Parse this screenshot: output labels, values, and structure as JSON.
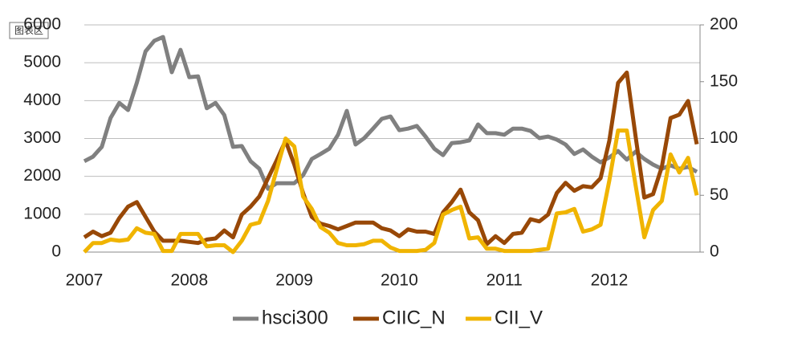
{
  "chart_data": {
    "type": "line",
    "tooltip": "图表区",
    "categories": [
      "2007",
      null,
      null,
      null,
      null,
      null,
      null,
      null,
      null,
      null,
      null,
      null,
      "2008",
      null,
      null,
      null,
      null,
      null,
      null,
      null,
      null,
      null,
      null,
      null,
      "2009",
      null,
      null,
      null,
      null,
      null,
      null,
      null,
      null,
      null,
      null,
      null,
      "2010",
      null,
      null,
      null,
      null,
      null,
      null,
      null,
      null,
      null,
      null,
      null,
      "2011",
      null,
      null,
      null,
      null,
      null,
      null,
      null,
      null,
      null,
      null,
      null,
      "2012",
      null,
      null,
      null,
      null,
      null,
      null,
      null,
      null,
      null,
      null
    ],
    "series": [
      {
        "name": "hsci300",
        "color": "#808080",
        "axis": "y",
        "values": [
          2400,
          2520,
          2780,
          3540,
          3940,
          3750,
          4470,
          5300,
          5580,
          5680,
          4750,
          5340,
          4620,
          4640,
          3800,
          3940,
          3620,
          2780,
          2800,
          2400,
          2200,
          1670,
          1820,
          1820,
          1820,
          2030,
          2460,
          2590,
          2730,
          3100,
          3730,
          2840,
          3010,
          3260,
          3520,
          3580,
          3220,
          3260,
          3330,
          3050,
          2730,
          2560,
          2880,
          2900,
          2950,
          3370,
          3140,
          3140,
          3100,
          3260,
          3260,
          3200,
          3010,
          3050,
          2970,
          2840,
          2590,
          2710,
          2520,
          2370,
          2500,
          2670,
          2440,
          2650,
          2460,
          2310,
          2200,
          2290,
          2200,
          2250,
          2120
        ]
      },
      {
        "name": "CIIC_N",
        "color": "#984807",
        "axis": "y2",
        "values": [
          13,
          18,
          14,
          17,
          30,
          40,
          44,
          31,
          18,
          10,
          10,
          10,
          9,
          8,
          11,
          12,
          19,
          13,
          33,
          40,
          49,
          65,
          81,
          98,
          77,
          52,
          31,
          25,
          23,
          20,
          23,
          26,
          26,
          26,
          21,
          19,
          14,
          20,
          18,
          18,
          16,
          35,
          44,
          55,
          35,
          28,
          7,
          14,
          8,
          16,
          17,
          29,
          27,
          33,
          52,
          61,
          54,
          58,
          57,
          65,
          98,
          149,
          158,
          102,
          48,
          51,
          75,
          118,
          121,
          133,
          95
        ]
      },
      {
        "name": "CII_V",
        "color": "#f0b400",
        "axis": "y2",
        "values": [
          0,
          8,
          8,
          11,
          10,
          11,
          21,
          17,
          16,
          1,
          1,
          16,
          16,
          16,
          5,
          6,
          6,
          0,
          10,
          24,
          26,
          45,
          73,
          100,
          93,
          49,
          38,
          22,
          17,
          8,
          6,
          6,
          7,
          10,
          10,
          4,
          1,
          1,
          1,
          2,
          8,
          33,
          37,
          40,
          12,
          13,
          3,
          3,
          1,
          1,
          1,
          1,
          2,
          3,
          34,
          35,
          38,
          18,
          20,
          24,
          63,
          107,
          107,
          59,
          13,
          37,
          45,
          86,
          70,
          83,
          50
        ]
      }
    ],
    "ylim": [
      0,
      6000
    ],
    "yticks": [
      0,
      1000,
      2000,
      3000,
      4000,
      5000,
      6000
    ],
    "y2lim": [
      0,
      200
    ],
    "y2ticks": [
      0,
      50,
      100,
      150,
      200
    ],
    "grid": true,
    "legend": "bottom"
  }
}
